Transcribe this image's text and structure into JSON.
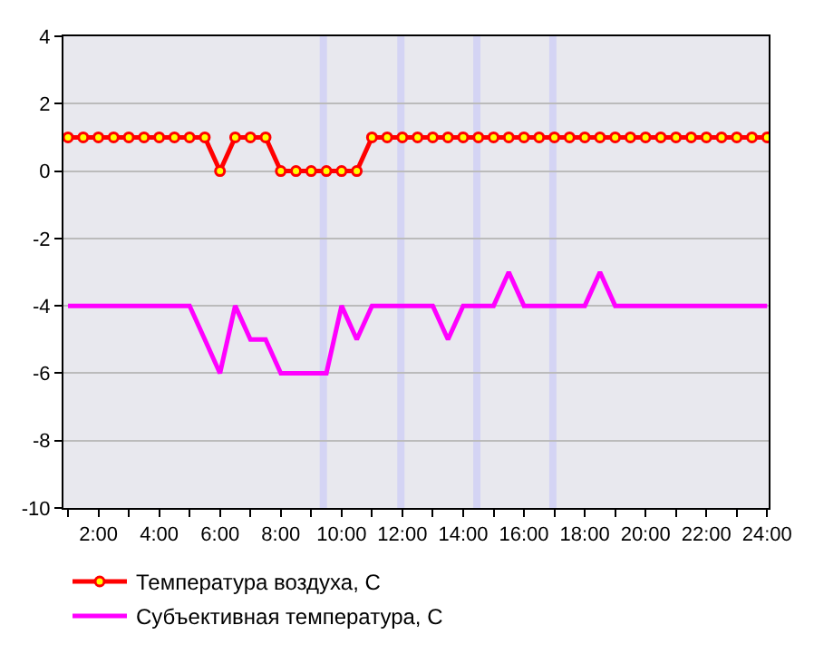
{
  "chart_data": {
    "type": "line",
    "x": [
      1,
      1.5,
      2,
      2.5,
      3,
      3.5,
      4,
      4.5,
      5,
      5.5,
      6,
      6.5,
      7,
      7.5,
      8,
      8.5,
      9,
      9.5,
      10,
      10.5,
      11,
      11.5,
      12,
      12.5,
      13,
      13.5,
      14,
      14.5,
      15,
      15.5,
      16,
      16.5,
      17,
      17.5,
      18,
      18.5,
      19,
      19.5,
      20,
      20.5,
      21,
      21.5,
      22,
      22.5,
      23,
      23.5,
      24
    ],
    "series": [
      {
        "name": "Температура воздуха, С",
        "color": "#ff0000",
        "marker": "circle",
        "values": [
          1,
          1,
          1,
          1,
          1,
          1,
          1,
          1,
          1,
          1,
          0,
          1,
          1,
          1,
          0,
          0,
          0,
          0,
          0,
          0,
          1,
          1,
          1,
          1,
          1,
          1,
          1,
          1,
          1,
          1,
          1,
          1,
          1,
          1,
          1,
          1,
          1,
          1,
          1,
          1,
          1,
          1,
          1,
          1,
          1,
          1,
          1
        ]
      },
      {
        "name": "Субъективная температура, С",
        "color": "#ff00ff",
        "marker": "none",
        "values": [
          -4,
          -4,
          -4,
          -4,
          -4,
          -4,
          -4,
          -4,
          -4,
          -5,
          -6,
          -4,
          -5,
          -5,
          -6,
          -6,
          -6,
          -6,
          -4,
          -5,
          -4,
          -4,
          -4,
          -4,
          -4,
          -5,
          -4,
          -4,
          -4,
          -3,
          -4,
          -4,
          -4,
          -4,
          -4,
          -3,
          -4,
          -4,
          -4,
          -4,
          -4,
          -4,
          -4,
          -4,
          -4,
          -4,
          -4
        ]
      }
    ],
    "xlim": [
      0.85,
      24.05
    ],
    "xticks": [
      {
        "value": 1,
        "label": null
      },
      {
        "value": 2,
        "label": "2:00"
      },
      {
        "value": 3,
        "label": null
      },
      {
        "value": 4,
        "label": "4:00"
      },
      {
        "value": 5,
        "label": null
      },
      {
        "value": 6,
        "label": "6:00"
      },
      {
        "value": 7,
        "label": null
      },
      {
        "value": 8,
        "label": "8:00"
      },
      {
        "value": 9,
        "label": null
      },
      {
        "value": 10,
        "label": "10:00"
      },
      {
        "value": 11,
        "label": null
      },
      {
        "value": 12,
        "label": "12:00"
      },
      {
        "value": 13,
        "label": null
      },
      {
        "value": 14,
        "label": "14:00"
      },
      {
        "value": 15,
        "label": null
      },
      {
        "value": 16,
        "label": "16:00"
      },
      {
        "value": 17,
        "label": null
      },
      {
        "value": 18,
        "label": "18:00"
      },
      {
        "value": 19,
        "label": null
      },
      {
        "value": 20,
        "label": "20:00"
      },
      {
        "value": 21,
        "label": null
      },
      {
        "value": 22,
        "label": "22:00"
      },
      {
        "value": 23,
        "label": null
      },
      {
        "value": 24,
        "label": "24:00"
      }
    ],
    "ylim": [
      -10,
      4
    ],
    "yticks": [
      -10,
      -8,
      -6,
      -4,
      -2,
      0,
      2,
      4
    ],
    "ref_lines": [
      {
        "axis": "x",
        "value": 9.4,
        "color": "#d4d4f4"
      },
      {
        "axis": "x",
        "value": 11.95,
        "color": "#d4d4f4"
      },
      {
        "axis": "x",
        "value": 14.45,
        "color": "#d4d4f4"
      },
      {
        "axis": "x",
        "value": 16.95,
        "color": "#d4d4f4"
      }
    ],
    "grid": "y",
    "legend": "bottom",
    "line_style": "solid"
  }
}
